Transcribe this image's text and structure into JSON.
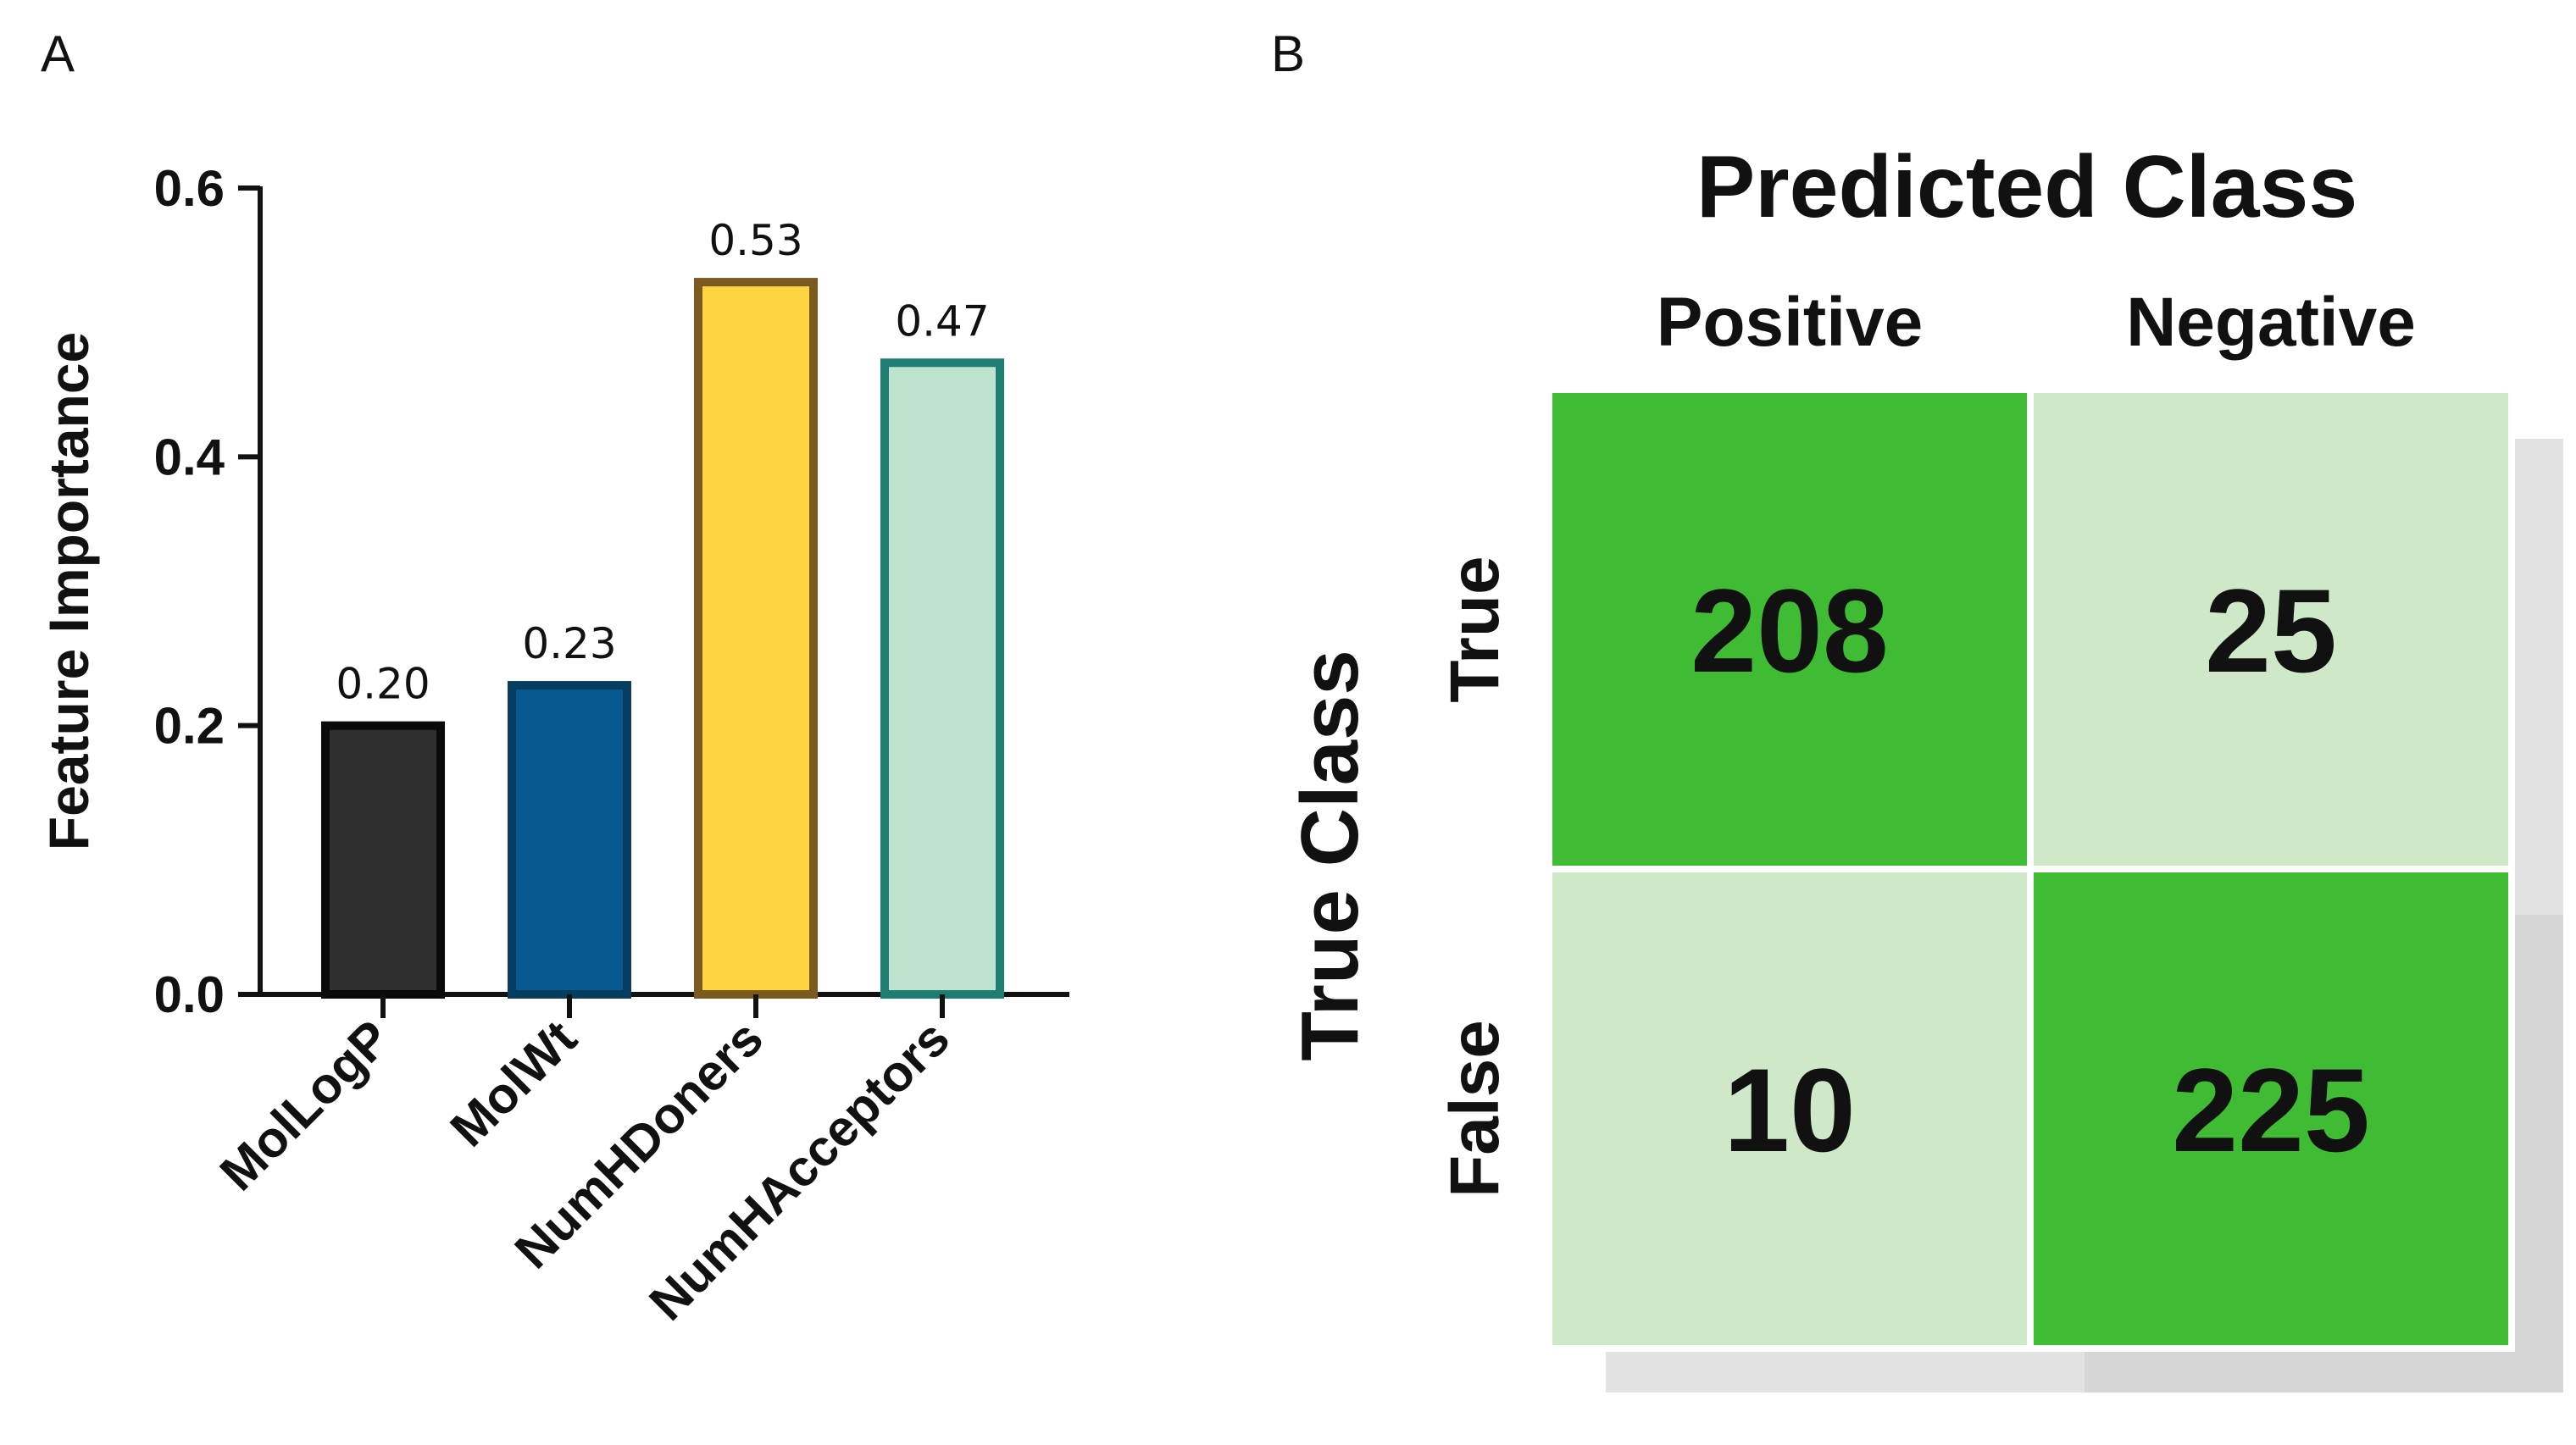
{
  "panel_a_label": "A",
  "panel_b_label": "B",
  "chart_data": [
    {
      "type": "bar",
      "title": "",
      "xlabel": "",
      "ylabel": "Feature Importance",
      "ylim": [
        0,
        0.6
      ],
      "yticks": [
        "0.0",
        "0.2",
        "0.4",
        "0.6"
      ],
      "categories": [
        "MolLogP",
        "MolWt",
        "NumHDoners",
        "NumHAcceptors"
      ],
      "values": [
        0.2,
        0.23,
        0.53,
        0.47
      ],
      "data_labels": [
        "0.20",
        "0.23",
        "0.53",
        "0.47"
      ],
      "colors": [
        {
          "fill": "#2f2f2f",
          "stroke": "#0a0a0a"
        },
        {
          "fill": "#065a8f",
          "stroke": "#063c5e"
        },
        {
          "fill": "#fdd442",
          "stroke": "#7a5a1e"
        },
        {
          "fill": "#bde3cf",
          "stroke": "#1e7d73"
        }
      ]
    },
    {
      "type": "heatmap",
      "title": "Predicted Class",
      "xlabel": "Predicted Class",
      "ylabel": "True Class",
      "columns": [
        "Positive",
        "Negative"
      ],
      "rows": [
        "True",
        "False"
      ],
      "values": [
        [
          208,
          25
        ],
        [
          10,
          225
        ]
      ],
      "colors": {
        "high": "#3fbc34",
        "low": "#cfe9c8",
        "shadow": "#e2e2e2"
      }
    }
  ]
}
